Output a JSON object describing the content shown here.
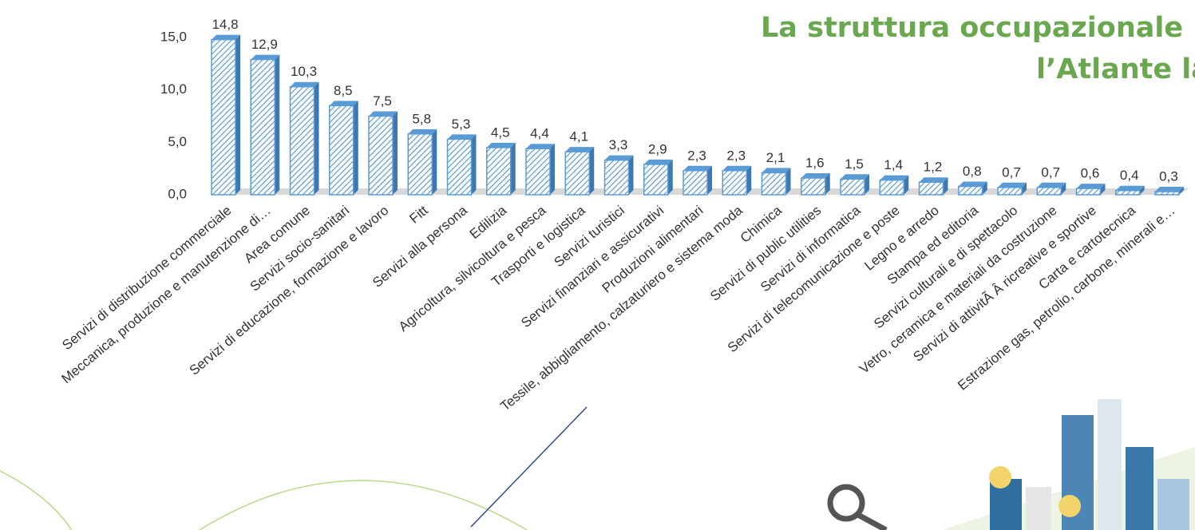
{
  "chart_data": {
    "type": "bar",
    "title": [
      "La struttura occupazionale i",
      "l’Atlante la"
    ],
    "categories": [
      "Servizi di distribuzione commerciale",
      "Meccanica, produzione e manutenzione di…",
      "Area comune",
      "Servizi socio-sanitari",
      "Servizi di educazione, formazione e lavoro",
      "Fitt",
      "Servizi alla persona",
      "Edilizia",
      "Agricoltura, silvicoltura e pesca",
      "Trasporti e logistica",
      "Servizi turistici",
      "Servizi finanziari e assicurativi",
      "Produzioni alimentari",
      "Tessile, abbigliamento, calzaturiero e sistema moda",
      "Chimica",
      "Servizi di public utilities",
      "Servizi di informatica",
      "Servizi di telecomunicazione e poste",
      "Legno e arredo",
      "Stampa ed editoria",
      "Servizi culturali e di spettacolo",
      "Vetro, ceramica e materiali da costruzione",
      "Servizi di attivitÃ Â ricreative e sportive",
      "Carta e cartotecnica",
      "Estrazione gas, petrolio, carbone, minerali e…"
    ],
    "values": [
      14.8,
      12.9,
      10.3,
      8.5,
      7.5,
      5.8,
      5.3,
      4.5,
      4.4,
      4.1,
      3.3,
      2.9,
      2.3,
      2.3,
      2.1,
      1.6,
      1.5,
      1.4,
      1.2,
      0.8,
      0.7,
      0.7,
      0.6,
      0.4,
      0.3
    ],
    "value_labels": [
      "14,8",
      "12,9",
      "10,3",
      "8,5",
      "7,5",
      "5,8",
      "5,3",
      "4,5",
      "4,4",
      "4,1",
      "3,3",
      "2,9",
      "2,3",
      "2,3",
      "2,1",
      "1,6",
      "1,5",
      "1,4",
      "1,2",
      "0,8",
      "0,7",
      "0,7",
      "0,6",
      "0,4",
      "0,3"
    ],
    "color": "#5b9bd5",
    "ylim": [
      0,
      15
    ],
    "yticks": [
      {
        "value": 0,
        "label": "0,0"
      },
      {
        "value": 5,
        "label": "5,0"
      },
      {
        "value": 10,
        "label": "10,0"
      },
      {
        "value": 15,
        "label": "15,0"
      }
    ]
  }
}
